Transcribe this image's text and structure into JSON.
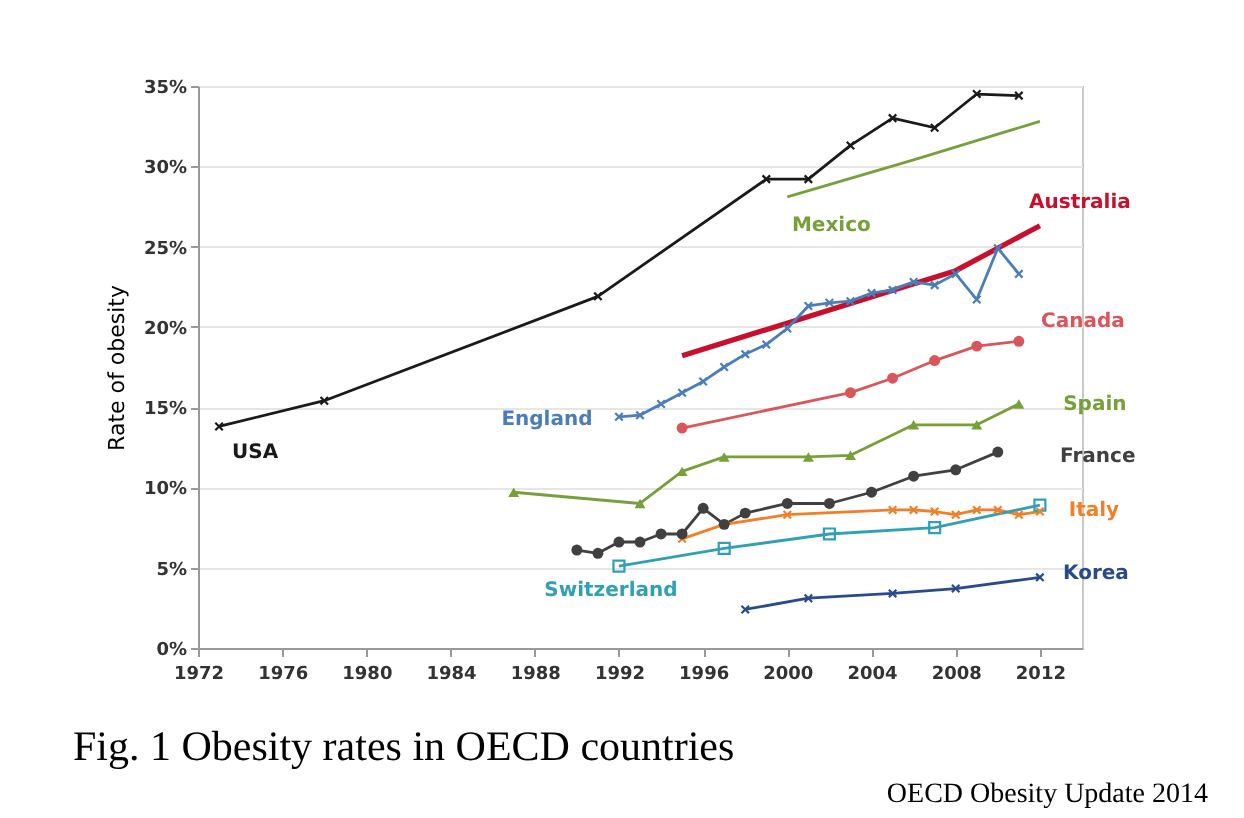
{
  "chart_data": {
    "type": "line",
    "title": "Fig. 1 Obesity rates in OECD countries",
    "ylabel": "Rate of obesity",
    "annotations": [
      "OECD Obesity Update 2014"
    ],
    "xlim": [
      1972,
      2014
    ],
    "xticks": [
      1972,
      1976,
      1980,
      1984,
      1988,
      1992,
      1996,
      2000,
      2004,
      2008,
      2012
    ],
    "ylim": [
      0,
      35
    ],
    "yticks": [
      {
        "value": 0,
        "label": "0%"
      },
      {
        "value": 5,
        "label": "5%"
      },
      {
        "value": 10,
        "label": "10%"
      },
      {
        "value": 15,
        "label": "15%"
      },
      {
        "value": 20,
        "label": "20%"
      },
      {
        "value": 25,
        "label": "25%"
      },
      {
        "value": 30,
        "label": "30%"
      },
      {
        "value": 35,
        "label": "35%"
      }
    ],
    "grid": "y",
    "series": [
      {
        "name": "USA",
        "color": "#1a1a1a",
        "marker": "cross",
        "x": [
          1973,
          1978,
          1991,
          1999,
          2001,
          2003,
          2005,
          2007,
          2009,
          2011
        ],
        "values": [
          13.8,
          15.4,
          21.9,
          29.2,
          29.2,
          31.3,
          33.0,
          32.4,
          34.5,
          34.4
        ]
      },
      {
        "name": "Mexico",
        "color": "#77a03a",
        "marker": "none",
        "x": [
          2000,
          2006,
          2012
        ],
        "values": [
          28.1,
          30.4,
          32.8
        ]
      },
      {
        "name": "Australia",
        "color": "#c8102e",
        "marker": "none",
        "x": [
          1995,
          2008,
          2012
        ],
        "values": [
          18.2,
          23.5,
          26.3
        ]
      },
      {
        "name": "England",
        "color": "#4a7ebb",
        "marker": "cross",
        "x": [
          1992,
          1993,
          1994,
          1995,
          1996,
          1997,
          1998,
          1999,
          2000,
          2001,
          2002,
          2003,
          2004,
          2005,
          2006,
          2007,
          2008,
          2009,
          2010,
          2011
        ],
        "values": [
          14.4,
          14.5,
          15.2,
          15.9,
          16.6,
          17.5,
          18.3,
          18.9,
          19.9,
          21.3,
          21.5,
          21.6,
          22.1,
          22.3,
          22.8,
          22.6,
          23.3,
          21.7,
          24.9,
          23.3
        ]
      },
      {
        "name": "Canada",
        "color": "#d9575b",
        "marker": "circle",
        "x": [
          1995,
          2003,
          2005,
          2007,
          2009,
          2011
        ],
        "values": [
          13.7,
          15.9,
          16.8,
          17.9,
          18.8,
          19.1
        ]
      },
      {
        "name": "Spain",
        "color": "#77a03a",
        "marker": "triangle",
        "x": [
          1987,
          1993,
          1995,
          1997,
          2001,
          2003,
          2006,
          2009,
          2011
        ],
        "values": [
          9.7,
          9.0,
          11.0,
          11.9,
          11.9,
          12.0,
          13.9,
          13.9,
          15.2
        ]
      },
      {
        "name": "France",
        "color": "#404040",
        "marker": "circle",
        "x": [
          1990,
          1991,
          1992,
          1993,
          1994,
          1995,
          1996,
          1997,
          1998,
          2000,
          2002,
          2004,
          2006,
          2008,
          2010
        ],
        "values": [
          6.1,
          5.9,
          6.6,
          6.6,
          7.1,
          7.1,
          8.7,
          7.7,
          8.4,
          9.0,
          9.0,
          9.7,
          10.7,
          11.1,
          12.2
        ]
      },
      {
        "name": "Italy",
        "color": "#f07f2a",
        "marker": "cross",
        "x": [
          1995,
          1997,
          2000,
          2005,
          2006,
          2007,
          2008,
          2009,
          2010,
          2011,
          2012
        ],
        "values": [
          6.8,
          7.7,
          8.3,
          8.6,
          8.6,
          8.5,
          8.3,
          8.6,
          8.6,
          8.3,
          8.5
        ]
      },
      {
        "name": "Switzerland",
        "color": "#31a0b5",
        "marker": "square",
        "x": [
          1992,
          1997,
          2002,
          2007,
          2012
        ],
        "values": [
          5.1,
          6.2,
          7.1,
          7.5,
          8.9
        ]
      },
      {
        "name": "Korea",
        "color": "#2a4b8b",
        "marker": "cross",
        "x": [
          1998,
          2001,
          2005,
          2008,
          2012
        ],
        "values": [
          2.4,
          3.1,
          3.4,
          3.7,
          4.4
        ]
      }
    ]
  }
}
